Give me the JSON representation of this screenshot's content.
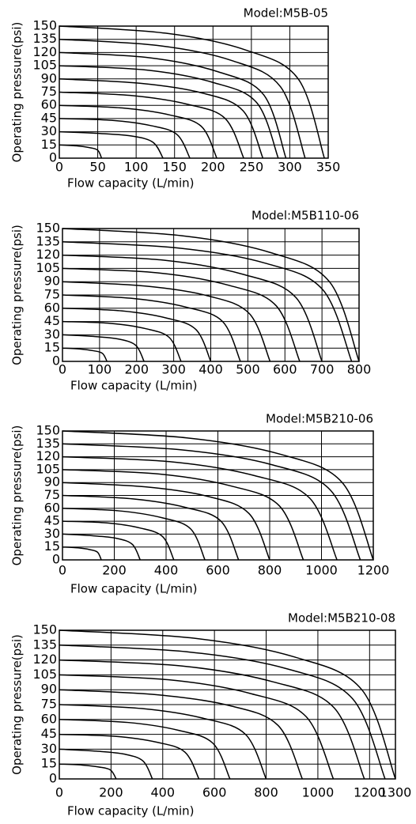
{
  "chart_data": [
    {
      "type": "line",
      "title": "Model:M5B-05",
      "xlabel": "Flow capacity (L/min)",
      "ylabel": "Operating pressure(psi)",
      "xlim": [
        0,
        350
      ],
      "xticks": [
        0,
        50,
        100,
        150,
        200,
        250,
        300,
        350
      ],
      "ylim": [
        0,
        150
      ],
      "yticks": [
        0,
        15,
        30,
        45,
        60,
        75,
        90,
        105,
        120,
        135,
        150
      ],
      "grid": true,
      "color": "#000000",
      "series": [
        {
          "x": [
            0,
            22,
            39,
            50,
            55
          ],
          "values": [
            15,
            14,
            12,
            9,
            0
          ]
        },
        {
          "x": [
            0,
            54,
            95,
            122,
            135
          ],
          "values": [
            30,
            28,
            25,
            18,
            0
          ]
        },
        {
          "x": [
            0,
            68,
            119,
            153,
            170
          ],
          "values": [
            45,
            43,
            37,
            27,
            0
          ]
        },
        {
          "x": [
            0,
            82,
            144,
            185,
            205
          ],
          "values": [
            60,
            57,
            49,
            36,
            0
          ]
        },
        {
          "x": [
            0,
            96,
            168,
            216,
            240
          ],
          "values": [
            75,
            71,
            61,
            45,
            0
          ]
        },
        {
          "x": [
            0,
            106,
            186,
            239,
            265
          ],
          "values": [
            90,
            85,
            74,
            54,
            0
          ]
        },
        {
          "x": [
            0,
            114,
            200,
            257,
            285
          ],
          "values": [
            105,
            100,
            86,
            63,
            0
          ]
        },
        {
          "x": [
            0,
            118,
            207,
            266,
            295
          ],
          "values": [
            120,
            114,
            98,
            72,
            0
          ]
        },
        {
          "x": [
            0,
            128,
            224,
            288,
            320
          ],
          "values": [
            135,
            128,
            111,
            81,
            0
          ]
        },
        {
          "x": [
            0,
            138,
            242,
            311,
            345
          ],
          "values": [
            150,
            142,
            123,
            90,
            0
          ]
        }
      ]
    },
    {
      "type": "line",
      "title": "Model:M5B110-06",
      "xlabel": "Flow capacity (L/min)",
      "ylabel": "Operating pressure(psi)",
      "xlim": [
        0,
        800
      ],
      "xticks": [
        0,
        100,
        200,
        300,
        400,
        500,
        600,
        700,
        800
      ],
      "ylim": [
        0,
        150
      ],
      "yticks": [
        0,
        15,
        30,
        45,
        60,
        75,
        90,
        105,
        120,
        135,
        150
      ],
      "grid": true,
      "color": "#000000",
      "series": [
        {
          "x": [
            0,
            48,
            84,
            108,
            120
          ],
          "values": [
            15,
            14,
            12,
            9,
            0
          ]
        },
        {
          "x": [
            0,
            88,
            154,
            198,
            220
          ],
          "values": [
            30,
            28,
            25,
            18,
            0
          ]
        },
        {
          "x": [
            0,
            128,
            224,
            288,
            320
          ],
          "values": [
            45,
            43,
            37,
            27,
            0
          ]
        },
        {
          "x": [
            0,
            160,
            280,
            360,
            400
          ],
          "values": [
            60,
            57,
            49,
            36,
            0
          ]
        },
        {
          "x": [
            0,
            192,
            336,
            432,
            480
          ],
          "values": [
            75,
            71,
            61,
            45,
            0
          ]
        },
        {
          "x": [
            0,
            224,
            392,
            504,
            560
          ],
          "values": [
            90,
            85,
            74,
            54,
            0
          ]
        },
        {
          "x": [
            0,
            256,
            448,
            576,
            640
          ],
          "values": [
            105,
            100,
            86,
            63,
            0
          ]
        },
        {
          "x": [
            0,
            280,
            490,
            630,
            700
          ],
          "values": [
            120,
            114,
            98,
            72,
            0
          ]
        },
        {
          "x": [
            0,
            312,
            546,
            702,
            780
          ],
          "values": [
            135,
            128,
            111,
            81,
            0
          ]
        },
        {
          "x": [
            0,
            320,
            560,
            720,
            800
          ],
          "values": [
            150,
            142,
            123,
            90,
            0
          ]
        }
      ]
    },
    {
      "type": "line",
      "title": "Model:M5B210-06",
      "xlabel": "Flow capacity (L/min)",
      "ylabel": "Operating pressure(psi)",
      "xlim": [
        0,
        1200
      ],
      "xticks": [
        0,
        200,
        400,
        600,
        800,
        1000,
        1200
      ],
      "ylim": [
        0,
        150
      ],
      "yticks": [
        0,
        15,
        30,
        45,
        60,
        75,
        90,
        105,
        120,
        135,
        150
      ],
      "grid": true,
      "color": "#000000",
      "series": [
        {
          "x": [
            0,
            60,
            105,
            135,
            150
          ],
          "values": [
            15,
            14,
            12,
            9,
            0
          ]
        },
        {
          "x": [
            0,
            120,
            210,
            270,
            300
          ],
          "values": [
            30,
            28,
            25,
            18,
            0
          ]
        },
        {
          "x": [
            0,
            172,
            301,
            387,
            430
          ],
          "values": [
            45,
            43,
            37,
            27,
            0
          ]
        },
        {
          "x": [
            0,
            220,
            385,
            495,
            550
          ],
          "values": [
            60,
            57,
            49,
            36,
            0
          ]
        },
        {
          "x": [
            0,
            272,
            476,
            612,
            680
          ],
          "values": [
            75,
            71,
            61,
            45,
            0
          ]
        },
        {
          "x": [
            0,
            320,
            560,
            720,
            800
          ],
          "values": [
            90,
            85,
            74,
            54,
            0
          ]
        },
        {
          "x": [
            0,
            372,
            651,
            837,
            930
          ],
          "values": [
            105,
            100,
            86,
            63,
            0
          ]
        },
        {
          "x": [
            0,
            424,
            742,
            954,
            1060
          ],
          "values": [
            120,
            114,
            98,
            72,
            0
          ]
        },
        {
          "x": [
            0,
            460,
            805,
            1035,
            1150
          ],
          "values": [
            135,
            128,
            111,
            81,
            0
          ]
        },
        {
          "x": [
            0,
            480,
            840,
            1080,
            1200
          ],
          "values": [
            150,
            142,
            123,
            90,
            0
          ]
        }
      ]
    },
    {
      "type": "line",
      "title": "Model:M5B210-08",
      "xlabel": "Flow capacity (L/min)",
      "ylabel": "Operating pressure(psi)",
      "xlim": [
        0,
        1300
      ],
      "xticks": [
        0,
        200,
        400,
        600,
        800,
        1000,
        1200,
        1300
      ],
      "ylim": [
        0,
        150
      ],
      "yticks": [
        0,
        15,
        30,
        45,
        60,
        75,
        90,
        105,
        120,
        135,
        150
      ],
      "grid": true,
      "color": "#000000",
      "series": [
        {
          "x": [
            0,
            88,
            154,
            198,
            220
          ],
          "values": [
            15,
            14,
            12,
            9,
            0
          ]
        },
        {
          "x": [
            0,
            144,
            252,
            324,
            360
          ],
          "values": [
            30,
            28,
            25,
            18,
            0
          ]
        },
        {
          "x": [
            0,
            216,
            378,
            486,
            540
          ],
          "values": [
            45,
            43,
            37,
            27,
            0
          ]
        },
        {
          "x": [
            0,
            264,
            462,
            594,
            660
          ],
          "values": [
            60,
            57,
            49,
            36,
            0
          ]
        },
        {
          "x": [
            0,
            320,
            560,
            720,
            800
          ],
          "values": [
            75,
            71,
            61,
            45,
            0
          ]
        },
        {
          "x": [
            0,
            376,
            658,
            846,
            940
          ],
          "values": [
            90,
            85,
            74,
            54,
            0
          ]
        },
        {
          "x": [
            0,
            424,
            742,
            954,
            1060
          ],
          "values": [
            105,
            100,
            86,
            63,
            0
          ]
        },
        {
          "x": [
            0,
            472,
            826,
            1062,
            1180
          ],
          "values": [
            120,
            114,
            98,
            72,
            0
          ]
        },
        {
          "x": [
            0,
            504,
            882,
            1134,
            1260
          ],
          "values": [
            135,
            128,
            111,
            81,
            0
          ]
        },
        {
          "x": [
            0,
            520,
            910,
            1170,
            1300
          ],
          "values": [
            150,
            142,
            123,
            90,
            0
          ]
        }
      ]
    }
  ]
}
